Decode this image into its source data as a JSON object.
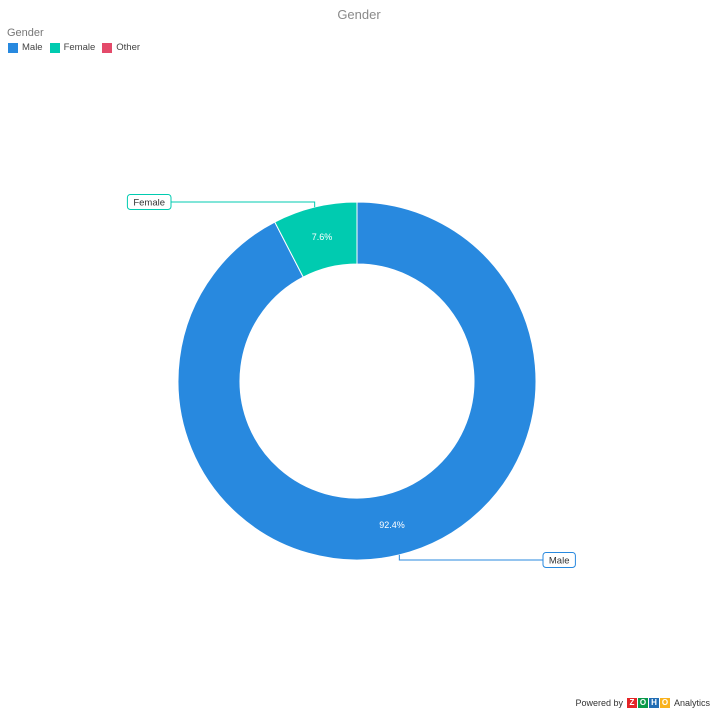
{
  "chart_data": {
    "type": "pie",
    "style": "donut",
    "title": "Gender",
    "legend_title": "Gender",
    "legend_position": "top-left",
    "categories": [
      "Male",
      "Female",
      "Other"
    ],
    "values": [
      92.4,
      7.6,
      0
    ],
    "colors": [
      "#2889df",
      "#00cbb0",
      "#e44a6a"
    ],
    "data_labels": [
      "92.4%",
      "7.6%",
      ""
    ]
  },
  "footer": {
    "powered_by": "Powered by",
    "brand": "ZOHO",
    "product": "Analytics",
    "brand_colors": [
      "#e42527",
      "#089949",
      "#226db4",
      "#f9b21d"
    ]
  }
}
